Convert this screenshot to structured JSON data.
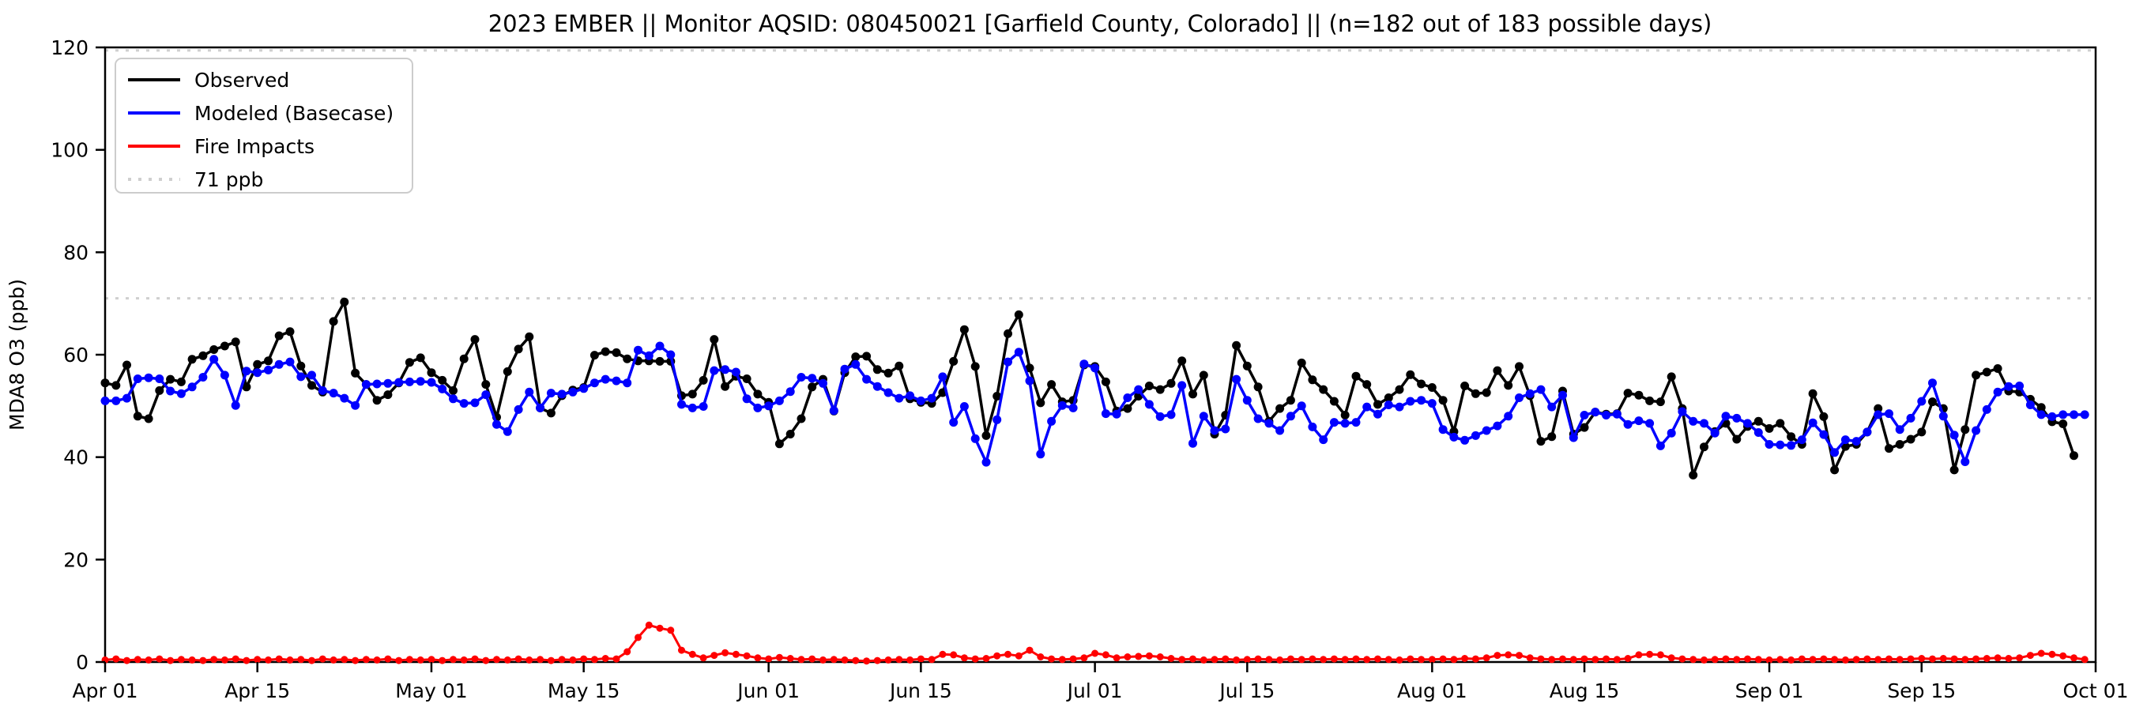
{
  "chart_data": {
    "type": "line",
    "title": "2023 EMBER || Monitor AQSID: 080450021 [Garfield County, Colorado] || (n=182 out of 183 possible days)",
    "ylabel": "MDA8 O3 (ppb)",
    "xlabel": "",
    "ylim": [
      0,
      120
    ],
    "yticks": [
      0,
      20,
      40,
      60,
      80,
      100,
      120
    ],
    "x_axis": {
      "start_label": "Apr 01",
      "end_label": "Oct 01",
      "total_day_span": 183,
      "ticks": [
        {
          "label": "Apr 01",
          "day": 0
        },
        {
          "label": "Apr 15",
          "day": 14
        },
        {
          "label": "May 01",
          "day": 30
        },
        {
          "label": "May 15",
          "day": 44
        },
        {
          "label": "Jun 01",
          "day": 61
        },
        {
          "label": "Jun 15",
          "day": 75
        },
        {
          "label": "Jul 01",
          "day": 91
        },
        {
          "label": "Jul 15",
          "day": 105
        },
        {
          "label": "Aug 01",
          "day": 122
        },
        {
          "label": "Aug 15",
          "day": 136
        },
        {
          "label": "Sep 01",
          "day": 153
        },
        {
          "label": "Sep 15",
          "day": 167
        },
        {
          "label": "Oct 01",
          "day": 183
        }
      ]
    },
    "grid": false,
    "legend_position": "upper left",
    "legend": [
      {
        "label": "Observed",
        "color": "#000000",
        "style": "solid"
      },
      {
        "label": "Modeled (Basecase)",
        "color": "#0000ff",
        "style": "solid"
      },
      {
        "label": "Fire Impacts",
        "color": "#ff0000",
        "style": "solid"
      },
      {
        "label": "71 ppb",
        "color": "#cfcfcf",
        "style": "dotted"
      }
    ],
    "reference_lines": [
      {
        "value": 71,
        "label": "71 ppb",
        "color": "#cfcfcf",
        "style": "dotted"
      },
      {
        "value": 119.4,
        "label": "",
        "color": "#cfcfcf",
        "style": "dotted"
      }
    ],
    "series": [
      {
        "name": "Observed",
        "color": "#000000",
        "marker_radius": 5.5,
        "line_width": 3.5,
        "values": [
          54.5,
          54,
          58,
          48,
          47.5,
          53,
          55.2,
          54.7,
          59.1,
          59.8,
          61,
          61.7,
          62.5,
          53.7,
          58.1,
          58.8,
          63.7,
          64.5,
          57.8,
          54,
          52.7,
          66.5,
          70.3,
          56.4,
          54.2,
          51.1,
          52.2,
          54.5,
          58.5,
          59.4,
          56.5,
          55,
          53,
          59.2,
          63,
          54.2,
          47.8,
          56.7,
          61.1,
          63.5,
          49.6,
          48.6,
          52,
          53.1,
          53.6,
          59.9,
          60.6,
          60.4,
          59.2,
          58.8,
          58.8,
          58.7,
          58.7,
          52,
          52.3,
          55,
          63,
          53.8,
          55.8,
          55.3,
          52.3,
          50.7,
          42.6,
          44.5,
          47.5,
          53.7,
          55.2,
          49,
          56.5,
          59.6,
          59.7,
          57.1,
          56.4,
          57.8,
          51.4,
          50.7,
          50.5,
          52.6,
          58.7,
          64.9,
          57.7,
          44.2,
          51.9,
          64.1,
          67.8,
          57.4,
          50.6,
          54.2,
          50.8,
          51.1,
          58,
          57.7,
          54.7,
          49,
          49.5,
          51.9,
          53.9,
          53.2,
          54.4,
          58.8,
          52.3,
          56,
          44.5,
          48.2,
          61.8,
          57.8,
          53.7,
          47,
          49.5,
          51.1,
          58.4,
          55.1,
          53.2,
          50.9,
          48.2,
          55.8,
          54.2,
          50.3,
          51.6,
          53.2,
          56.1,
          54.3,
          53.6,
          51.1,
          45,
          53.9,
          52.4,
          52.6,
          56.9,
          54,
          57.7,
          52,
          43.1,
          44,
          52.9,
          44.5,
          45.8,
          48.8,
          48.4,
          48.5,
          52.5,
          52.1,
          51,
          50.8,
          55.7,
          49.5,
          36.5,
          42,
          45,
          46.6,
          43.5,
          46,
          47,
          45.6,
          46.6,
          44,
          42.5,
          52.4,
          47.9,
          37.5,
          42.1,
          42.5,
          44.9,
          49.5,
          41.7,
          42.5,
          43.5,
          44.9,
          50.8,
          49.5,
          37.5,
          45.4,
          56,
          56.6,
          57.3,
          52.9,
          52.7,
          51.3,
          49.7,
          46.9,
          46.5,
          40.3,
          null
        ]
      },
      {
        "name": "Modeled (Basecase)",
        "color": "#0000ff",
        "marker_radius": 5.5,
        "line_width": 3.5,
        "values": [
          51,
          51,
          51.5,
          55.3,
          55.5,
          55.3,
          52.9,
          52.4,
          53.7,
          55.6,
          59.1,
          56,
          50.1,
          56.8,
          56.5,
          57,
          58.1,
          58.6,
          55.7,
          56,
          53,
          52.5,
          51.5,
          50.1,
          54.2,
          54.3,
          54.4,
          54.6,
          54.7,
          54.8,
          54.6,
          53.3,
          51.4,
          50.5,
          50.6,
          52.2,
          46.4,
          45,
          49.3,
          52.7,
          49.6,
          52.5,
          52.3,
          52.7,
          53.4,
          54.5,
          55.2,
          54.9,
          54.5,
          60.9,
          59.8,
          61.7,
          60,
          50.3,
          49.6,
          49.9,
          56.9,
          57.1,
          56.6,
          51.4,
          49.6,
          50,
          51,
          52.8,
          55.6,
          55.4,
          54.4,
          49.1,
          57.2,
          58.1,
          55.2,
          53.8,
          52.6,
          51.5,
          52,
          51,
          51.5,
          55.7,
          46.8,
          49.9,
          43.6,
          39,
          47.3,
          58.6,
          60.5,
          54.9,
          40.6,
          47,
          50.1,
          49.6,
          58.2,
          57.4,
          48.5,
          48.4,
          51.6,
          53.2,
          50.3,
          47.9,
          48.3,
          54,
          42.7,
          48,
          45.2,
          45.5,
          55.2,
          51.1,
          47.5,
          46.6,
          45.2,
          48,
          50,
          45.9,
          43.4,
          46.8,
          46.6,
          46.8,
          49.8,
          48.4,
          50.2,
          49.8,
          50.9,
          51.1,
          50.5,
          45.4,
          43.9,
          43.3,
          44.2,
          45.2,
          46.1,
          48,
          51.6,
          52.4,
          53.2,
          49.8,
          52.1,
          43.8,
          48.2,
          48.8,
          48.2,
          48.4,
          46.4,
          47.1,
          46.6,
          42.2,
          44.7,
          48.9,
          47,
          46.6,
          44.7,
          48,
          47.6,
          46.6,
          44.8,
          42.5,
          42.4,
          42.3,
          43.4,
          46.7,
          44.4,
          40.9,
          43.4,
          43.1,
          44.9,
          48.3,
          48.5,
          45.4,
          47.6,
          50.9,
          54.5,
          48,
          44.3,
          39.1,
          45.2,
          49.3,
          52.7,
          53.8,
          53.9,
          50.2,
          48.3,
          47.9,
          48.3,
          48.3,
          48.3
        ]
      },
      {
        "name": "Fire Impacts",
        "color": "#ff0000",
        "marker_radius": 4.5,
        "line_width": 3,
        "values": [
          0.4,
          0.6,
          0.3,
          0.5,
          0.4,
          0.6,
          0.3,
          0.5,
          0.4,
          0.3,
          0.5,
          0.4,
          0.6,
          0.3,
          0.5,
          0.4,
          0.6,
          0.4,
          0.5,
          0.3,
          0.6,
          0.4,
          0.5,
          0.3,
          0.5,
          0.4,
          0.6,
          0.3,
          0.5,
          0.4,
          0.5,
          0.3,
          0.5,
          0.4,
          0.6,
          0.3,
          0.5,
          0.4,
          0.6,
          0.4,
          0.5,
          0.3,
          0.5,
          0.4,
          0.6,
          0.5,
          0.7,
          0.6,
          2,
          4.8,
          7.2,
          6.6,
          6.2,
          2.3,
          1.5,
          0.8,
          1.3,
          1.8,
          1.5,
          1.2,
          0.8,
          0.6,
          0.9,
          0.7,
          0.5,
          0.6,
          0.4,
          0.5,
          0.4,
          0.3,
          0.2,
          0.3,
          0.4,
          0.5,
          0.4,
          0.6,
          0.5,
          1.5,
          1.4,
          0.8,
          0.6,
          0.7,
          1.2,
          1.5,
          1.2,
          2.3,
          1,
          0.6,
          0.5,
          0.6,
          0.8,
          1.7,
          1.4,
          0.8,
          1,
          1.1,
          1.2,
          1,
          0.7,
          0.5,
          0.6,
          0.4,
          0.5,
          0.6,
          0.4,
          0.5,
          0.6,
          0.5,
          0.4,
          0.6,
          0.5,
          0.6,
          0.5,
          0.6,
          0.5,
          0.6,
          0.5,
          0.6,
          0.5,
          0.4,
          0.6,
          0.5,
          0.5,
          0.6,
          0.5,
          0.7,
          0.6,
          0.8,
          1.3,
          1.4,
          1.3,
          0.8,
          0.6,
          0.5,
          0.6,
          0.5,
          0.6,
          0.5,
          0.6,
          0.5,
          0.7,
          1.4,
          1.5,
          1.4,
          0.8,
          0.6,
          0.5,
          0.4,
          0.5,
          0.6,
          0.5,
          0.6,
          0.5,
          0.4,
          0.5,
          0.4,
          0.6,
          0.5,
          0.6,
          0.5,
          0.4,
          0.5,
          0.6,
          0.5,
          0.6,
          0.5,
          0.6,
          0.7,
          0.6,
          0.7,
          0.6,
          0.5,
          0.6,
          0.7,
          0.8,
          0.7,
          0.8,
          1.3,
          1.7,
          1.5,
          1.2,
          0.8,
          0.5
        ]
      }
    ]
  }
}
